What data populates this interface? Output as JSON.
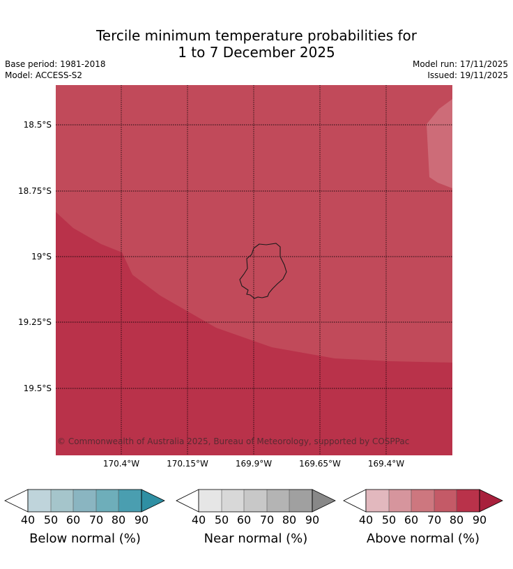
{
  "title": {
    "line1": "Tercile minimum temperature probabilities for",
    "line2": "1 to 7 December 2025"
  },
  "meta": {
    "base_period": "Base period: 1981-2018",
    "model": "Model: ACCESS-S2",
    "model_run": "Model run: 17/11/2025",
    "issued": "Issued: 19/11/2025"
  },
  "map": {
    "latitude_labels": [
      "18.5°S",
      "18.75°S",
      "19°S",
      "19.25°S",
      "19.5°S"
    ],
    "longitude_labels": [
      "170.4°W",
      "170.15°W",
      "169.9°W",
      "169.65°W",
      "169.4°W"
    ],
    "copyright": "© Commonwealth of Australia 2025, Bureau of Meteorology, supported by COSPPac",
    "colors": {
      "above_90": "#b9324a",
      "above_80": "#c14a5a",
      "above_70": "#cd6c78"
    }
  },
  "legends": [
    {
      "label": "Below normal (%)",
      "ticks": [
        "40",
        "50",
        "60",
        "70",
        "80",
        "90"
      ],
      "colors": [
        "#bfd4db",
        "#a5c5cb",
        "#8ab5c1",
        "#6eaeba",
        "#4a9eb0",
        "#2f8fa3"
      ]
    },
    {
      "label": "Near normal (%)",
      "ticks": [
        "40",
        "50",
        "60",
        "70",
        "80",
        "90"
      ],
      "colors": [
        "#e6e6e6",
        "#d8d8d8",
        "#c8c8c8",
        "#b4b4b4",
        "#a0a0a0",
        "#888888"
      ]
    },
    {
      "label": "Above normal (%)",
      "ticks": [
        "40",
        "50",
        "60",
        "70",
        "80",
        "90"
      ],
      "colors": [
        "#e2b8be",
        "#d6959d",
        "#cd777f",
        "#c45a67",
        "#b9324a",
        "#a8203c"
      ]
    }
  ]
}
